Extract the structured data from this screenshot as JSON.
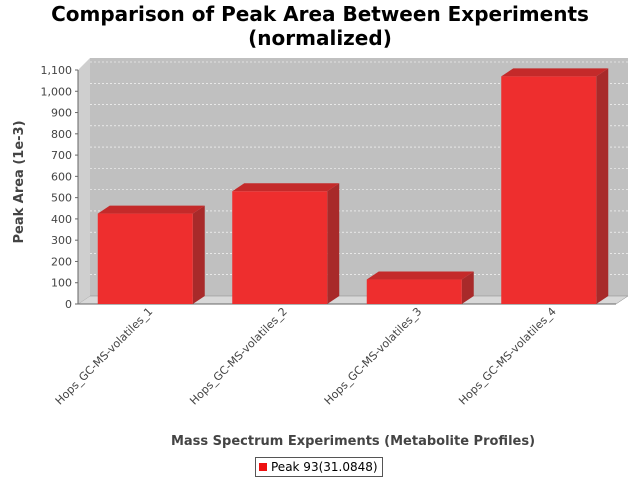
{
  "chart_data": {
    "type": "bar",
    "title": "Comparison of Peak Area Between Experiments\n(normalized)",
    "xlabel": "Mass Spectrum Experiments (Metabolite Profiles)",
    "ylabel": "Peak Area (1e-3)",
    "categories": [
      "Hops_GC-MS-volatiles_1",
      "Hops_GC-MS-volatiles_2",
      "Hops_GC-MS-volatiles_3",
      "Hops_GC-MS-volatiles_4"
    ],
    "series": [
      {
        "name": "Peak 93(31.0848)",
        "values": [
          425,
          530,
          115,
          1070
        ]
      }
    ],
    "ylim": [
      0,
      1100
    ],
    "yticks": [
      "0",
      "100",
      "200",
      "300",
      "400",
      "500",
      "600",
      "700",
      "800",
      "900",
      "1,000",
      "1,100"
    ],
    "grid": true,
    "legend": "bottom",
    "colors": {
      "bar": "#ee2222",
      "plot_bg": "#bfbfbf"
    }
  }
}
